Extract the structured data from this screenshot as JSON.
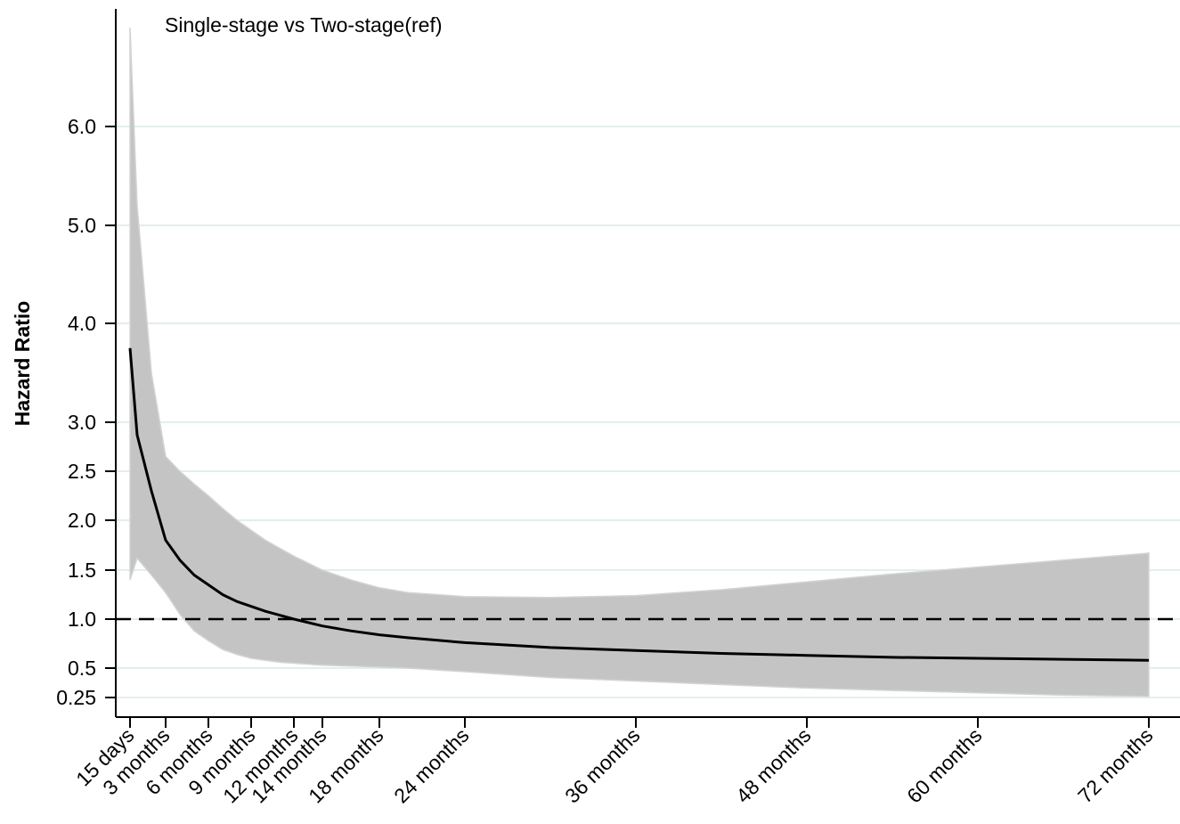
{
  "chart_data": {
    "type": "line",
    "title": "Single-stage vs Two-stage(ref)",
    "ylabel": "Hazard Ratio",
    "xlabel": "",
    "grid": true,
    "y_ticks": [
      {
        "value": 0.25,
        "label": "0.25"
      },
      {
        "value": 0.5,
        "label": "0.5"
      },
      {
        "value": 1.0,
        "label": "1.0"
      },
      {
        "value": 1.5,
        "label": "1.5"
      },
      {
        "value": 2.0,
        "label": "2.0"
      },
      {
        "value": 2.5,
        "label": "2.5"
      },
      {
        "value": 3.0,
        "label": "3.0"
      },
      {
        "value": 4.0,
        "label": "4.0"
      },
      {
        "value": 5.0,
        "label": "5.0"
      },
      {
        "value": 6.0,
        "label": "6.0"
      }
    ],
    "x_ticks": [
      {
        "value": 0.5,
        "label": "15 days"
      },
      {
        "value": 3,
        "label": "3 months"
      },
      {
        "value": 6,
        "label": "6 months"
      },
      {
        "value": 9,
        "label": "9 months"
      },
      {
        "value": 12,
        "label": "12 months"
      },
      {
        "value": 14,
        "label": "14 months"
      },
      {
        "value": 18,
        "label": "18 months"
      },
      {
        "value": 24,
        "label": "24 months"
      },
      {
        "value": 36,
        "label": "36 months"
      },
      {
        "value": 48,
        "label": "48 months"
      },
      {
        "value": 60,
        "label": "60 months"
      },
      {
        "value": 72,
        "label": "72 months"
      }
    ],
    "reference_line": 1.0,
    "series": [
      {
        "kind": "estimate",
        "x": [
          0.5,
          1,
          2,
          3,
          4,
          5,
          6,
          7,
          8,
          9,
          10,
          11,
          12,
          14,
          16,
          18,
          20,
          24,
          30,
          36,
          42,
          48,
          54,
          60,
          66,
          72
        ],
        "y": [
          3.75,
          2.87,
          2.3,
          1.8,
          1.6,
          1.45,
          1.35,
          1.25,
          1.18,
          1.13,
          1.08,
          1.04,
          1.0,
          0.93,
          0.88,
          0.84,
          0.81,
          0.76,
          0.71,
          0.68,
          0.65,
          0.63,
          0.61,
          0.6,
          0.59,
          0.58
        ]
      },
      {
        "kind": "upper_ci",
        "x": [
          0.5,
          1,
          2,
          3,
          4,
          5,
          6,
          7,
          8,
          9,
          10,
          11,
          12,
          14,
          16,
          18,
          20,
          24,
          30,
          36,
          42,
          48,
          54,
          60,
          66,
          72
        ],
        "y": [
          7.0,
          5.2,
          3.5,
          2.65,
          2.5,
          2.37,
          2.25,
          2.12,
          2.0,
          1.9,
          1.8,
          1.72,
          1.64,
          1.5,
          1.4,
          1.32,
          1.27,
          1.23,
          1.22,
          1.24,
          1.3,
          1.38,
          1.46,
          1.53,
          1.6,
          1.67
        ]
      },
      {
        "kind": "lower_ci",
        "x": [
          0.5,
          1,
          2,
          3,
          4,
          5,
          6,
          7,
          8,
          9,
          10,
          11,
          12,
          14,
          16,
          18,
          20,
          24,
          30,
          36,
          42,
          48,
          54,
          60,
          66,
          72
        ],
        "y": [
          1.4,
          1.62,
          1.45,
          1.27,
          1.05,
          0.88,
          0.78,
          0.69,
          0.64,
          0.6,
          0.58,
          0.56,
          0.55,
          0.53,
          0.52,
          0.51,
          0.5,
          0.47,
          0.42,
          0.39,
          0.36,
          0.33,
          0.31,
          0.29,
          0.27,
          0.26
        ]
      }
    ],
    "colors": {
      "band": "#c4c4c4",
      "band_edge": "#d3d3d3",
      "line": "#000000",
      "grid": "#e3eeee",
      "axis": "#000000"
    }
  }
}
